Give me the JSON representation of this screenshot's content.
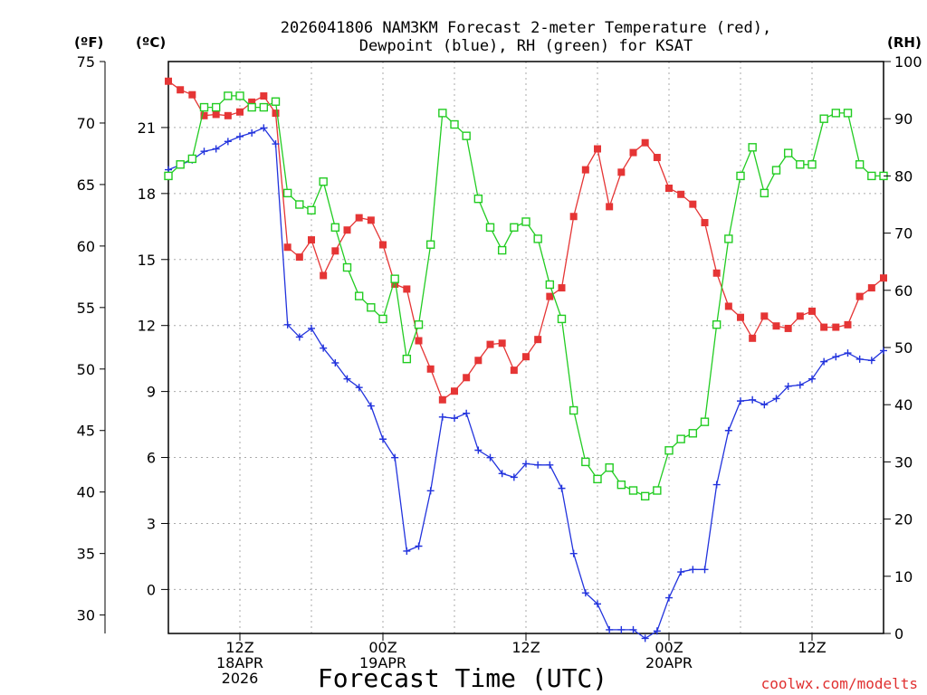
{
  "chart_data": {
    "type": "line",
    "title_line1": "2026041806 NAM3KM Forecast 2-meter Temperature (red),",
    "title_line2": "Dewpoint (blue), RH (green) for KSAT",
    "xlabel": "Forecast Time (UTC)",
    "credit": "coolwx.com/modelts",
    "units": {
      "fahrenheit": "(ºF)",
      "celsius": "(ºC)",
      "rh": "(RH)"
    },
    "x_hours_range": [
      0,
      60
    ],
    "fahrenheit_axis": {
      "range": [
        28.5,
        75
      ],
      "ticks": [
        "75",
        "70",
        "65",
        "60",
        "55",
        "50",
        "45",
        "40",
        "35",
        "30"
      ]
    },
    "celsius_axis": {
      "range": [
        -2,
        24
      ],
      "ticks": [
        "21",
        "18",
        "15",
        "12",
        "9",
        "6",
        "3",
        "0"
      ]
    },
    "rh_axis": {
      "range": [
        0,
        100
      ],
      "ticks": [
        "100",
        "90",
        "80",
        "70",
        "60",
        "50",
        "40",
        "30",
        "20",
        "10",
        "0"
      ]
    },
    "x_ticks": [
      {
        "hour": 6,
        "lines": [
          "12Z",
          "18APR",
          "2026"
        ]
      },
      {
        "hour": 18,
        "lines": [
          "00Z",
          "19APR"
        ]
      },
      {
        "hour": 30,
        "lines": [
          "12Z"
        ]
      },
      {
        "hour": 42,
        "lines": [
          "00Z",
          "20APR"
        ]
      },
      {
        "hour": 54,
        "lines": [
          "12Z"
        ]
      }
    ],
    "series": [
      {
        "name": "2-meter Temperature",
        "axis": "fahrenheit",
        "color": "#e53535",
        "marker": "filled-square",
        "values": [
          73.4,
          72.7,
          72.3,
          70.6,
          70.7,
          70.6,
          70.9,
          71.7,
          72.2,
          70.8,
          59.9,
          59.1,
          60.5,
          57.6,
          59.6,
          61.3,
          62.3,
          62.1,
          60.1,
          56.9,
          56.5,
          52.3,
          50.0,
          47.5,
          48.2,
          49.3,
          50.7,
          52.0,
          52.1,
          49.9,
          51.0,
          52.4,
          55.9,
          56.6,
          62.4,
          66.2,
          67.9,
          63.2,
          66.0,
          67.6,
          68.4,
          67.2,
          64.7,
          64.2,
          63.4,
          61.9,
          57.8,
          55.1,
          54.2,
          52.5,
          54.3,
          53.5,
          53.3,
          54.3,
          54.7,
          53.4,
          53.4,
          53.6,
          55.9,
          56.6,
          57.4
        ]
      },
      {
        "name": "Dewpoint",
        "axis": "fahrenheit",
        "color": "#2233dd",
        "marker": "plus",
        "values": [
          66.2,
          66.6,
          67.0,
          67.7,
          67.9,
          68.5,
          68.9,
          69.2,
          69.6,
          68.3,
          53.6,
          52.6,
          53.3,
          51.7,
          50.5,
          49.2,
          48.5,
          47.0,
          44.3,
          42.8,
          35.2,
          35.6,
          40.1,
          46.1,
          46.0,
          46.4,
          43.4,
          42.8,
          41.5,
          41.2,
          42.3,
          42.2,
          42.2,
          40.3,
          35.0,
          31.8,
          30.9,
          28.8,
          28.8,
          28.8,
          28.1,
          28.7,
          31.4,
          33.5,
          33.7,
          33.7,
          40.6,
          45.0,
          47.4,
          47.5,
          47.1,
          47.6,
          48.6,
          48.7,
          49.2,
          50.6,
          51.0,
          51.3,
          50.8,
          50.7,
          51.5
        ]
      },
      {
        "name": "RH",
        "axis": "rh",
        "color": "#22cc22",
        "marker": "open-square",
        "values": [
          80,
          82,
          83,
          92,
          92,
          94,
          94,
          92,
          92,
          93,
          77,
          75,
          74,
          79,
          71,
          64,
          59,
          57,
          55,
          62,
          48,
          54,
          68,
          91,
          89,
          87,
          76,
          71,
          67,
          71,
          72,
          69,
          61,
          55,
          39,
          30,
          27,
          29,
          26,
          25,
          24,
          25,
          32,
          34,
          35,
          37,
          54,
          69,
          80,
          85,
          77,
          81,
          84,
          82,
          82,
          90,
          91,
          91,
          82,
          80,
          80
        ]
      }
    ]
  }
}
